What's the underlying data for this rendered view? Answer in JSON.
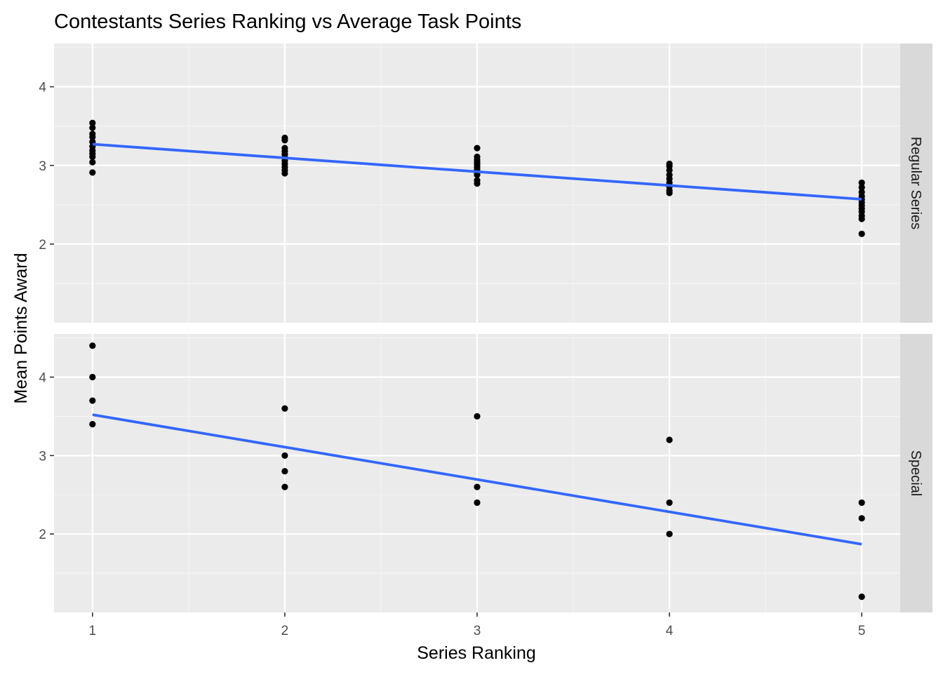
{
  "chart_data": {
    "type": "scatter",
    "title": "Contestants Series Ranking vs Average Task Points",
    "xlabel": "Series Ranking",
    "ylabel": "Mean Points Award",
    "xlim": [
      0.8,
      5.2
    ],
    "x_ticks": [
      1,
      2,
      3,
      4,
      5
    ],
    "grid": true,
    "colors": {
      "panel_bg": "#ebebeb",
      "strip_bg": "#d9d9d9",
      "grid_major": "#ffffff",
      "grid_minor": "#f5f5f5",
      "points": "#000000",
      "trend_line": "#3366ff",
      "tick_text": "#4d4d4d"
    },
    "facets": [
      {
        "label": "Regular Series",
        "ylim": [
          1.0,
          4.55
        ],
        "y_ticks": [
          2,
          3,
          4
        ],
        "points": [
          {
            "x": 1,
            "y": 3.54
          },
          {
            "x": 1,
            "y": 3.48
          },
          {
            "x": 1,
            "y": 3.4
          },
          {
            "x": 1,
            "y": 3.36
          },
          {
            "x": 1,
            "y": 3.3
          },
          {
            "x": 1,
            "y": 3.24
          },
          {
            "x": 1,
            "y": 3.19
          },
          {
            "x": 1,
            "y": 3.15
          },
          {
            "x": 1,
            "y": 3.11
          },
          {
            "x": 1,
            "y": 3.04
          },
          {
            "x": 1,
            "y": 2.91
          },
          {
            "x": 2,
            "y": 3.35
          },
          {
            "x": 2,
            "y": 3.32
          },
          {
            "x": 2,
            "y": 3.22
          },
          {
            "x": 2,
            "y": 3.18
          },
          {
            "x": 2,
            "y": 3.14
          },
          {
            "x": 2,
            "y": 3.1
          },
          {
            "x": 2,
            "y": 3.06
          },
          {
            "x": 2,
            "y": 3.02
          },
          {
            "x": 2,
            "y": 2.98
          },
          {
            "x": 2,
            "y": 2.94
          },
          {
            "x": 2,
            "y": 2.9
          },
          {
            "x": 3,
            "y": 3.22
          },
          {
            "x": 3,
            "y": 3.11
          },
          {
            "x": 3,
            "y": 3.07
          },
          {
            "x": 3,
            "y": 3.04
          },
          {
            "x": 3,
            "y": 3.01
          },
          {
            "x": 3,
            "y": 2.98
          },
          {
            "x": 3,
            "y": 2.95
          },
          {
            "x": 3,
            "y": 2.91
          },
          {
            "x": 3,
            "y": 2.88
          },
          {
            "x": 3,
            "y": 2.81
          },
          {
            "x": 3,
            "y": 2.77
          },
          {
            "x": 4,
            "y": 3.02
          },
          {
            "x": 4,
            "y": 2.99
          },
          {
            "x": 4,
            "y": 2.94
          },
          {
            "x": 4,
            "y": 2.88
          },
          {
            "x": 4,
            "y": 2.83
          },
          {
            "x": 4,
            "y": 2.78
          },
          {
            "x": 4,
            "y": 2.73
          },
          {
            "x": 4,
            "y": 2.68
          },
          {
            "x": 4,
            "y": 2.65
          },
          {
            "x": 5,
            "y": 2.78
          },
          {
            "x": 5,
            "y": 2.72
          },
          {
            "x": 5,
            "y": 2.66
          },
          {
            "x": 5,
            "y": 2.61
          },
          {
            "x": 5,
            "y": 2.57
          },
          {
            "x": 5,
            "y": 2.53
          },
          {
            "x": 5,
            "y": 2.49
          },
          {
            "x": 5,
            "y": 2.45
          },
          {
            "x": 5,
            "y": 2.41
          },
          {
            "x": 5,
            "y": 2.36
          },
          {
            "x": 5,
            "y": 2.32
          },
          {
            "x": 5,
            "y": 2.13
          }
        ],
        "trend": {
          "x": [
            1,
            5
          ],
          "y": [
            3.27,
            2.57
          ]
        }
      },
      {
        "label": "Special",
        "ylim": [
          1.0,
          4.55
        ],
        "y_ticks": [
          2,
          3,
          4
        ],
        "points": [
          {
            "x": 1,
            "y": 4.4
          },
          {
            "x": 1,
            "y": 4.0
          },
          {
            "x": 1,
            "y": 3.7
          },
          {
            "x": 1,
            "y": 3.4
          },
          {
            "x": 2,
            "y": 3.6
          },
          {
            "x": 2,
            "y": 3.0
          },
          {
            "x": 2,
            "y": 2.8
          },
          {
            "x": 2,
            "y": 2.6
          },
          {
            "x": 3,
            "y": 3.5
          },
          {
            "x": 3,
            "y": 2.6
          },
          {
            "x": 3,
            "y": 2.4
          },
          {
            "x": 4,
            "y": 3.2
          },
          {
            "x": 4,
            "y": 2.4
          },
          {
            "x": 4,
            "y": 2.0
          },
          {
            "x": 5,
            "y": 2.4
          },
          {
            "x": 5,
            "y": 2.2
          },
          {
            "x": 5,
            "y": 1.2
          }
        ],
        "trend": {
          "x": [
            1,
            5
          ],
          "y": [
            3.52,
            1.87
          ]
        }
      }
    ]
  }
}
